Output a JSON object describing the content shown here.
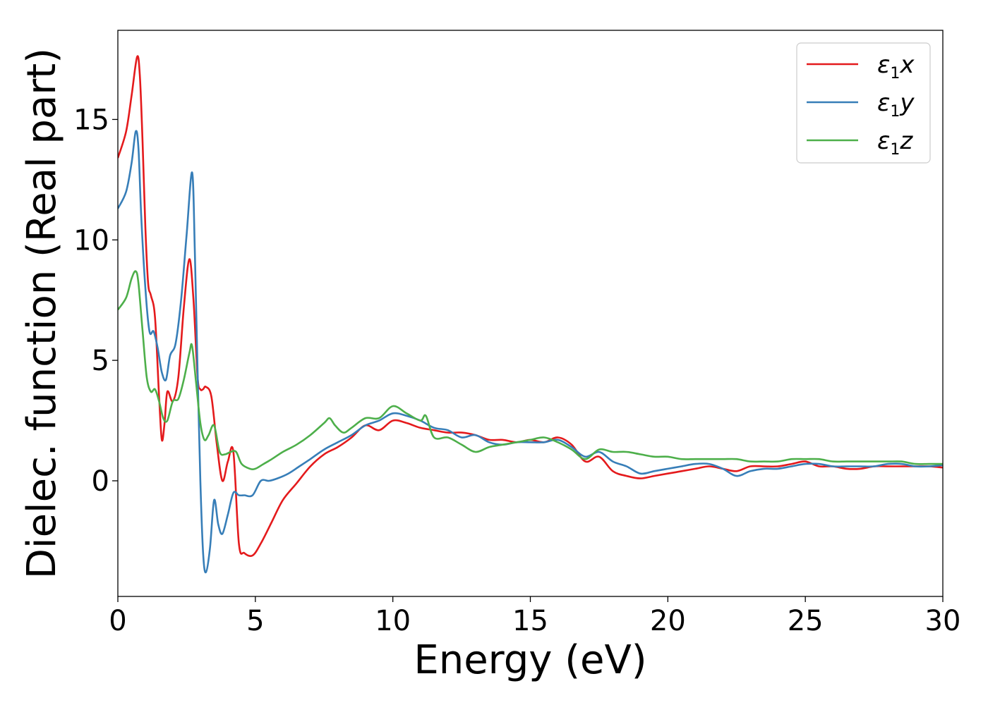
{
  "chart_data": {
    "type": "line",
    "xlabel": "Energy (eV)",
    "ylabel": "Dielec. function (Real part)",
    "xlim": [
      0,
      30
    ],
    "ylim": [
      -4.8,
      18.7
    ],
    "xticks": [
      0,
      5,
      10,
      15,
      20,
      25,
      30
    ],
    "yticks": [
      0,
      5,
      10,
      15
    ],
    "grid": false,
    "legend_position": "top-right",
    "series": [
      {
        "name": "ε1x",
        "legend_main": "ε",
        "legend_sub": "1",
        "legend_suffix": "x",
        "color": "#e41a1c",
        "x": [
          0,
          0.3,
          0.5,
          0.7,
          0.8,
          0.9,
          1.0,
          1.1,
          1.2,
          1.35,
          1.5,
          1.6,
          1.7,
          1.8,
          2.0,
          2.2,
          2.4,
          2.6,
          2.75,
          2.9,
          3.0,
          3.1,
          3.2,
          3.4,
          3.6,
          3.8,
          4.0,
          4.2,
          4.4,
          4.6,
          4.9,
          5.2,
          5.6,
          6.0,
          6.5,
          7.0,
          7.5,
          8.0,
          8.5,
          9.0,
          9.5,
          10.0,
          10.5,
          11.0,
          11.5,
          12.0,
          12.5,
          13.0,
          13.5,
          14.0,
          14.5,
          15.0,
          15.5,
          16.0,
          16.5,
          17.0,
          17.5,
          18.0,
          18.5,
          19.0,
          19.5,
          20.0,
          20.5,
          21.0,
          21.5,
          22.0,
          22.5,
          23.0,
          23.5,
          24.0,
          24.5,
          25.0,
          25.5,
          26.0,
          26.5,
          27.0,
          27.5,
          28.0,
          28.5,
          29.0,
          29.5,
          30.0
        ],
        "y": [
          13.4,
          14.5,
          16.0,
          17.6,
          16.8,
          14.0,
          10.5,
          8.2,
          7.7,
          6.8,
          3.5,
          1.7,
          2.4,
          3.7,
          3.3,
          4.3,
          7.2,
          9.2,
          7.5,
          4.3,
          3.8,
          3.8,
          3.9,
          3.5,
          1.5,
          0.0,
          0.8,
          1.2,
          -2.6,
          -3.0,
          -3.1,
          -2.6,
          -1.7,
          -0.8,
          -0.1,
          0.6,
          1.1,
          1.4,
          1.8,
          2.3,
          2.1,
          2.5,
          2.4,
          2.2,
          2.1,
          2.0,
          2.0,
          1.9,
          1.7,
          1.7,
          1.6,
          1.7,
          1.6,
          1.8,
          1.5,
          0.8,
          1.0,
          0.4,
          0.2,
          0.1,
          0.2,
          0.3,
          0.4,
          0.5,
          0.6,
          0.5,
          0.4,
          0.6,
          0.6,
          0.6,
          0.7,
          0.8,
          0.6,
          0.6,
          0.5,
          0.5,
          0.6,
          0.6,
          0.6,
          0.6,
          0.6,
          0.55
        ]
      },
      {
        "name": "ε1y",
        "legend_main": "ε",
        "legend_sub": "1",
        "legend_suffix": "y",
        "color": "#377eb8",
        "x": [
          0,
          0.3,
          0.5,
          0.65,
          0.75,
          0.85,
          1.0,
          1.15,
          1.3,
          1.45,
          1.6,
          1.75,
          1.9,
          2.1,
          2.3,
          2.5,
          2.7,
          2.8,
          2.9,
          3.0,
          3.1,
          3.2,
          3.35,
          3.5,
          3.65,
          3.8,
          4.0,
          4.2,
          4.4,
          4.6,
          4.9,
          5.2,
          5.5,
          5.8,
          6.2,
          6.6,
          7.0,
          7.5,
          8.0,
          8.5,
          9.0,
          9.5,
          10.0,
          10.5,
          11.0,
          11.5,
          12.0,
          12.5,
          13.0,
          13.5,
          14.0,
          14.5,
          15.0,
          15.5,
          16.0,
          16.5,
          17.0,
          17.5,
          18.0,
          18.5,
          19.0,
          19.5,
          20.0,
          20.5,
          21.0,
          21.5,
          22.0,
          22.5,
          23.0,
          23.5,
          24.0,
          24.5,
          25.0,
          25.5,
          26.0,
          26.5,
          27.0,
          27.5,
          28.0,
          28.5,
          29.0,
          29.5,
          30.0
        ],
        "y": [
          11.3,
          12.0,
          13.2,
          14.5,
          13.8,
          11.0,
          8.0,
          6.2,
          6.2,
          5.5,
          4.5,
          4.2,
          5.2,
          5.7,
          7.5,
          10.2,
          12.8,
          9.5,
          4.5,
          0.0,
          -3.0,
          -3.8,
          -2.8,
          -0.8,
          -1.8,
          -2.2,
          -1.4,
          -0.5,
          -0.6,
          -0.6,
          -0.6,
          0.0,
          0.0,
          0.1,
          0.3,
          0.6,
          0.9,
          1.3,
          1.6,
          1.9,
          2.3,
          2.5,
          2.8,
          2.7,
          2.5,
          2.2,
          2.1,
          1.8,
          1.9,
          1.6,
          1.5,
          1.6,
          1.6,
          1.6,
          1.7,
          1.4,
          1.0,
          1.2,
          0.8,
          0.6,
          0.3,
          0.4,
          0.5,
          0.6,
          0.7,
          0.7,
          0.5,
          0.2,
          0.4,
          0.5,
          0.5,
          0.6,
          0.7,
          0.7,
          0.6,
          0.6,
          0.6,
          0.6,
          0.7,
          0.7,
          0.6,
          0.6,
          0.65
        ]
      },
      {
        "name": "ε1z",
        "legend_main": "ε",
        "legend_sub": "1",
        "legend_suffix": "z",
        "color": "#4daf4a",
        "x": [
          0,
          0.3,
          0.5,
          0.65,
          0.75,
          0.9,
          1.05,
          1.2,
          1.35,
          1.5,
          1.65,
          1.8,
          2.0,
          2.2,
          2.4,
          2.6,
          2.7,
          2.85,
          3.0,
          3.15,
          3.3,
          3.5,
          3.7,
          3.9,
          4.1,
          4.3,
          4.5,
          4.8,
          5.0,
          5.3,
          5.6,
          6.0,
          6.5,
          7.0,
          7.5,
          7.7,
          7.9,
          8.2,
          8.5,
          9.0,
          9.5,
          10.0,
          10.5,
          11.0,
          11.2,
          11.5,
          12.0,
          12.5,
          13.0,
          13.5,
          14.0,
          14.5,
          15.0,
          15.5,
          16.0,
          16.5,
          17.0,
          17.5,
          18.0,
          18.5,
          19.0,
          19.5,
          20.0,
          20.5,
          21.0,
          21.5,
          22.0,
          22.5,
          23.0,
          23.5,
          24.0,
          24.5,
          25.0,
          25.5,
          26.0,
          26.5,
          27.0,
          27.5,
          28.0,
          28.5,
          29.0,
          29.5,
          30.0
        ],
        "y": [
          7.1,
          7.6,
          8.4,
          8.7,
          8.2,
          6.2,
          4.3,
          3.7,
          3.8,
          3.3,
          2.6,
          2.5,
          3.3,
          3.4,
          4.2,
          5.3,
          5.6,
          4.0,
          2.4,
          1.7,
          1.9,
          2.3,
          1.2,
          1.1,
          1.2,
          1.2,
          0.7,
          0.5,
          0.5,
          0.7,
          0.9,
          1.2,
          1.5,
          1.9,
          2.4,
          2.6,
          2.3,
          2.0,
          2.2,
          2.6,
          2.6,
          3.1,
          2.8,
          2.5,
          2.7,
          1.8,
          1.8,
          1.5,
          1.2,
          1.4,
          1.5,
          1.6,
          1.7,
          1.8,
          1.6,
          1.3,
          0.9,
          1.3,
          1.2,
          1.2,
          1.1,
          1.0,
          1.0,
          0.9,
          0.9,
          0.9,
          0.9,
          0.9,
          0.8,
          0.8,
          0.8,
          0.9,
          0.9,
          0.9,
          0.8,
          0.8,
          0.8,
          0.8,
          0.8,
          0.8,
          0.7,
          0.7,
          0.7
        ]
      }
    ]
  }
}
